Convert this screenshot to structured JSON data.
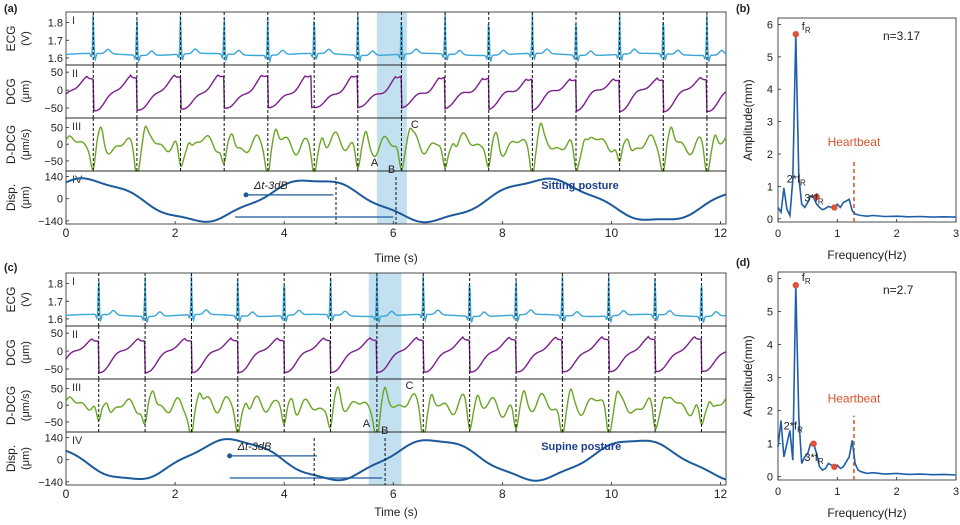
{
  "panels_time": [
    {
      "panel_label": "(a)",
      "posture": "Sitting posture",
      "highlight_range": [
        5.7,
        6.25
      ],
      "subplots": [
        {
          "roman": "I",
          "ylabel": [
            "ECG",
            "(V)"
          ],
          "yticks": [
            1.6,
            1.7,
            1.8
          ],
          "ylim": [
            1.56,
            1.86
          ],
          "color": "#3aa6d8"
        },
        {
          "roman": "II",
          "ylabel": [
            "DCG",
            "(μm)"
          ],
          "yticks": [
            -50,
            0,
            50
          ],
          "ylim": [
            -78,
            70
          ],
          "color": "#7b1e8c"
        },
        {
          "roman": "III",
          "ylabel": [
            "D-DCG",
            "(μm/s)"
          ],
          "yticks": [
            -50,
            0,
            50
          ],
          "ylim": [
            -80,
            78
          ],
          "color": "#6aa523",
          "markers": [
            "A",
            "B",
            "C"
          ]
        },
        {
          "roman": "IV",
          "ylabel": [
            "Disp.",
            "(μm)"
          ],
          "yticks": [
            -140,
            0,
            140
          ],
          "ylim": [
            -160,
            175
          ],
          "color": "#1c5a9c",
          "annotation": "Δt-3dB"
        }
      ],
      "xlabel": "Time (s)",
      "xticks": [
        0,
        2,
        4,
        6,
        8,
        10,
        12
      ],
      "xlim": [
        0,
        12.1
      ]
    },
    {
      "panel_label": "(c)",
      "posture": "Supine posture",
      "highlight_range": [
        5.55,
        6.15
      ],
      "subplots": [
        {
          "roman": "I",
          "ylabel": [
            "ECG",
            "(V)"
          ],
          "yticks": [
            1.6,
            1.7,
            1.8
          ],
          "ylim": [
            1.56,
            1.86
          ],
          "color": "#3aa6d8"
        },
        {
          "roman": "II",
          "ylabel": [
            "DCG",
            "(μm)"
          ],
          "yticks": [
            -50,
            0,
            50
          ],
          "ylim": [
            -78,
            70
          ],
          "color": "#7b1e8c"
        },
        {
          "roman": "III",
          "ylabel": [
            "D-DCG",
            "(μm/s)"
          ],
          "yticks": [
            -50,
            0,
            50
          ],
          "ylim": [
            -80,
            78
          ],
          "color": "#6aa523",
          "markers": [
            "A",
            "B",
            "C"
          ]
        },
        {
          "roman": "IV",
          "ylabel": [
            "Disp.",
            "(μm)"
          ],
          "yticks": [
            -140,
            0,
            140
          ],
          "ylim": [
            -160,
            175
          ],
          "color": "#1c5a9c",
          "annotation": "Δt-3dB"
        }
      ],
      "xlabel": "Time (s)",
      "xticks": [
        0,
        2,
        4,
        6,
        8,
        10,
        12
      ],
      "xlim": [
        0,
        12.1
      ]
    }
  ],
  "panels_freq": [
    {
      "panel_label": "(b)",
      "n_label": "n=3.17",
      "heartbeat_label": "Heartbeat",
      "heartbeat_x": 1.28
    },
    {
      "panel_label": "(d)",
      "n_label": "n=2.7",
      "heartbeat_label": "Heartbeat",
      "heartbeat_x": 1.28
    }
  ],
  "freq_axes": {
    "xlabel": "Frequency(Hz)",
    "ylabel": "Amplitude(mm)",
    "xticks": [
      0,
      1,
      2,
      3
    ],
    "yticks": [
      0,
      1,
      2,
      3,
      4,
      5,
      6
    ],
    "xlim": [
      0,
      3
    ],
    "ylim": [
      -0.1,
      6.2
    ]
  },
  "chart_data": [
    {
      "type": "line",
      "title": "(a) Sitting posture",
      "xlabel": "Time (s)",
      "ecg_r_peak_times": [
        0.5,
        1.3,
        2.1,
        2.9,
        3.7,
        4.55,
        5.35,
        6.15,
        6.95,
        7.75,
        8.55,
        9.35,
        10.15,
        10.95,
        11.75
      ],
      "series": [
        {
          "name": "ECG",
          "ylabel": "ECG (V)",
          "baseline": 1.62,
          "peak": 1.84,
          "ylim": [
            1.56,
            1.86
          ]
        },
        {
          "name": "DCG",
          "ylabel": "DCG (μm)",
          "ylim": [
            -78,
            70
          ]
        },
        {
          "name": "D-DCG",
          "ylabel": "D-DCG (μm/s)",
          "ylim": [
            -80,
            78
          ]
        },
        {
          "name": "Disp.",
          "ylabel": "Disp. (μm)",
          "ylim": [
            -160,
            175
          ]
        }
      ]
    },
    {
      "type": "line",
      "xlabel": "Frequency(Hz)",
      "ylabel": "Amplitude(mm)",
      "x": [
        0,
        0.05,
        0.1,
        0.15,
        0.2,
        0.25,
        0.3,
        0.35,
        0.4,
        0.45,
        0.5,
        0.55,
        0.6,
        0.65,
        0.7,
        0.75,
        0.8,
        0.85,
        0.9,
        0.95,
        1.0,
        1.05,
        1.1,
        1.15,
        1.2,
        1.25,
        1.3,
        1.35,
        1.4,
        1.5,
        1.6,
        1.8,
        2.0,
        2.2,
        2.4,
        2.6,
        2.8,
        3.0
      ],
      "values": [
        0.35,
        0.2,
        0.95,
        0.3,
        0.1,
        1.2,
        5.7,
        1.3,
        0.45,
        0.35,
        0.5,
        0.7,
        0.65,
        0.45,
        0.35,
        0.28,
        0.32,
        0.38,
        0.35,
        0.3,
        0.45,
        0.35,
        0.5,
        0.55,
        0.6,
        0.25,
        0.15,
        0.12,
        0.1,
        0.08,
        0.1,
        0.07,
        0.08,
        0.06,
        0.07,
        0.05,
        0.06,
        0.05
      ],
      "annotations": [
        {
          "label": "f_R",
          "x": 0.3,
          "y": 5.7
        },
        {
          "label": "2*f_R",
          "x": 0.65,
          "y": 0.68
        },
        {
          "label": "3*f_R",
          "x": 0.95,
          "y": 0.35
        }
      ],
      "heartbeat_x": 1.28
    },
    {
      "type": "line",
      "title": "(c) Supine posture",
      "xlabel": "Time (s)",
      "ecg_r_peak_times": [
        0.6,
        1.45,
        2.3,
        3.15,
        4.0,
        4.85,
        5.7,
        6.55,
        7.4,
        8.25,
        9.1,
        9.95,
        10.8,
        11.65
      ],
      "series": [
        {
          "name": "ECG",
          "ylabel": "ECG (V)",
          "baseline": 1.62,
          "peak": 1.84,
          "ylim": [
            1.56,
            1.86
          ]
        },
        {
          "name": "DCG",
          "ylabel": "DCG (μm)",
          "ylim": [
            -78,
            70
          ]
        },
        {
          "name": "D-DCG",
          "ylabel": "D-DCG (μm/s)",
          "ylim": [
            -80,
            78
          ]
        },
        {
          "name": "Disp.",
          "ylabel": "Disp. (μm)",
          "ylim": [
            -160,
            175
          ]
        }
      ]
    },
    {
      "type": "line",
      "xlabel": "Frequency(Hz)",
      "ylabel": "Amplitude(mm)",
      "x": [
        0,
        0.05,
        0.1,
        0.15,
        0.2,
        0.25,
        0.3,
        0.35,
        0.4,
        0.45,
        0.5,
        0.55,
        0.6,
        0.65,
        0.7,
        0.75,
        0.8,
        0.85,
        0.9,
        0.95,
        1.0,
        1.05,
        1.1,
        1.15,
        1.2,
        1.25,
        1.3,
        1.35,
        1.4,
        1.5,
        1.6,
        1.8,
        2.0,
        2.2,
        2.4,
        2.6,
        2.8,
        3.0
      ],
      "values": [
        0.9,
        1.7,
        0.6,
        1.0,
        1.4,
        0.5,
        5.8,
        1.8,
        0.4,
        0.6,
        0.7,
        1.0,
        1.0,
        0.7,
        0.3,
        0.2,
        0.25,
        0.4,
        0.35,
        0.3,
        0.35,
        0.25,
        0.3,
        0.45,
        0.6,
        1.1,
        0.4,
        0.2,
        0.15,
        0.1,
        0.12,
        0.08,
        0.1,
        0.07,
        0.08,
        0.06,
        0.07,
        0.05
      ],
      "annotations": [
        {
          "label": "f_R",
          "x": 0.3,
          "y": 5.8
        },
        {
          "label": "2*f_R",
          "x": 0.6,
          "y": 1.0
        },
        {
          "label": "3*f_R",
          "x": 0.95,
          "y": 0.3
        }
      ],
      "heartbeat_x": 1.28
    }
  ]
}
